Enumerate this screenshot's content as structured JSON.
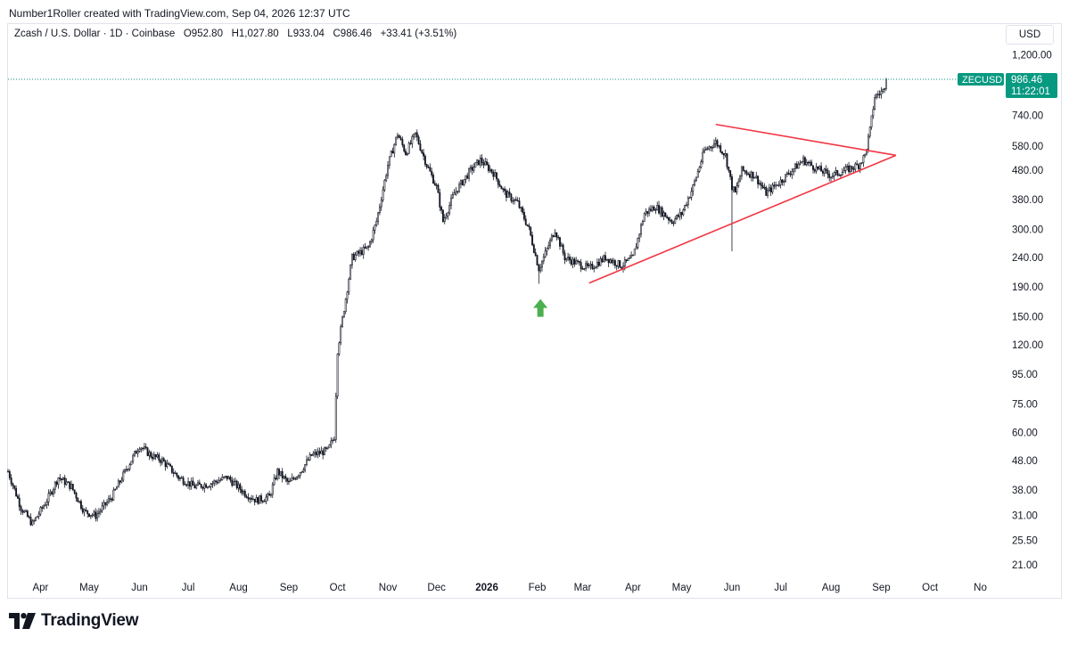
{
  "attribution": "Number1Roller created with TradingView.com, Sep 04, 2026 12:37 UTC",
  "legend": {
    "symbol": "Zcash / U.S. Dollar · 1D · Coinbase",
    "open_label": "O",
    "open": "952.80",
    "high_label": "H",
    "high": "1,027.80",
    "low_label": "L",
    "low": "933.04",
    "close_label": "C",
    "close": "986.46",
    "change": "+33.41 (+3.51%)"
  },
  "currency": "USD",
  "price_tag": {
    "symbol": "ZECUSD",
    "price": "986.46",
    "countdown": "11:22:01",
    "color": "#089981"
  },
  "brand": "TradingView",
  "chart_data": {
    "type": "candlestick",
    "scale": "log",
    "ylim": [
      19,
      1300
    ],
    "y_ticks": [
      {
        "v": 1200,
        "label": "1,200.00"
      },
      {
        "v": 740,
        "label": "740.00"
      },
      {
        "v": 580,
        "label": "580.00"
      },
      {
        "v": 480,
        "label": "480.00"
      },
      {
        "v": 380,
        "label": "380.00"
      },
      {
        "v": 300,
        "label": "300.00"
      },
      {
        "v": 240,
        "label": "240.00"
      },
      {
        "v": 190,
        "label": "190.00"
      },
      {
        "v": 150,
        "label": "150.00"
      },
      {
        "v": 120,
        "label": "120.00"
      },
      {
        "v": 95,
        "label": "95.00"
      },
      {
        "v": 75,
        "label": "75.00"
      },
      {
        "v": 60,
        "label": "60.00"
      },
      {
        "v": 48,
        "label": "48.00"
      },
      {
        "v": 38,
        "label": "38.00"
      },
      {
        "v": 31,
        "label": "31.00"
      },
      {
        "v": 25.5,
        "label": "25.50"
      },
      {
        "v": 21,
        "label": "21.00"
      }
    ],
    "x_start": "2025-03-12",
    "x_end": "2026-11-15",
    "x_ticks": [
      {
        "date": "2025-04-01",
        "label": "Apr"
      },
      {
        "date": "2025-05-01",
        "label": "May"
      },
      {
        "date": "2025-06-01",
        "label": "Jun"
      },
      {
        "date": "2025-07-01",
        "label": "Jul"
      },
      {
        "date": "2025-08-01",
        "label": "Aug"
      },
      {
        "date": "2025-09-01",
        "label": "Sep"
      },
      {
        "date": "2025-10-01",
        "label": "Oct"
      },
      {
        "date": "2025-11-01",
        "label": "Nov"
      },
      {
        "date": "2025-12-01",
        "label": "Dec"
      },
      {
        "date": "2026-01-01",
        "label": "2026",
        "bold": true
      },
      {
        "date": "2026-02-01",
        "label": "Feb"
      },
      {
        "date": "2026-03-01",
        "label": "Mar"
      },
      {
        "date": "2026-04-01",
        "label": "Apr"
      },
      {
        "date": "2026-05-01",
        "label": "May"
      },
      {
        "date": "2026-06-01",
        "label": "Jun"
      },
      {
        "date": "2026-07-01",
        "label": "Jul"
      },
      {
        "date": "2026-08-01",
        "label": "Aug"
      },
      {
        "date": "2026-09-01",
        "label": "Sep"
      },
      {
        "date": "2026-10-01",
        "label": "Oct"
      },
      {
        "date": "2026-11-01",
        "label": "No"
      }
    ],
    "price_path": [
      {
        "date": "2025-03-12",
        "close": 44
      },
      {
        "date": "2025-03-20",
        "close": 33
      },
      {
        "date": "2025-03-27",
        "close": 29
      },
      {
        "date": "2025-04-05",
        "close": 35
      },
      {
        "date": "2025-04-12",
        "close": 42
      },
      {
        "date": "2025-04-20",
        "close": 39
      },
      {
        "date": "2025-04-28",
        "close": 32
      },
      {
        "date": "2025-05-05",
        "close": 31
      },
      {
        "date": "2025-05-15",
        "close": 36
      },
      {
        "date": "2025-05-25",
        "close": 46
      },
      {
        "date": "2025-06-01",
        "close": 54
      },
      {
        "date": "2025-06-08",
        "close": 50
      },
      {
        "date": "2025-06-15",
        "close": 48
      },
      {
        "date": "2025-06-25",
        "close": 42
      },
      {
        "date": "2025-07-05",
        "close": 39
      },
      {
        "date": "2025-07-15",
        "close": 40
      },
      {
        "date": "2025-07-25",
        "close": 42
      },
      {
        "date": "2025-08-05",
        "close": 37
      },
      {
        "date": "2025-08-12",
        "close": 35
      },
      {
        "date": "2025-08-20",
        "close": 36
      },
      {
        "date": "2025-08-25",
        "close": 44
      },
      {
        "date": "2025-09-01",
        "close": 40
      },
      {
        "date": "2025-09-08",
        "close": 44
      },
      {
        "date": "2025-09-15",
        "close": 50
      },
      {
        "date": "2025-09-25",
        "close": 52
      },
      {
        "date": "2025-09-29",
        "close": 58
      },
      {
        "date": "2025-10-01",
        "close": 115
      },
      {
        "date": "2025-10-05",
        "close": 160
      },
      {
        "date": "2025-10-10",
        "close": 240
      },
      {
        "date": "2025-10-15",
        "close": 250
      },
      {
        "date": "2025-10-20",
        "close": 260
      },
      {
        "date": "2025-10-25",
        "close": 320
      },
      {
        "date": "2025-11-01",
        "close": 500
      },
      {
        "date": "2025-11-07",
        "close": 640
      },
      {
        "date": "2025-11-12",
        "close": 550
      },
      {
        "date": "2025-11-18",
        "close": 640
      },
      {
        "date": "2025-11-25",
        "close": 500
      },
      {
        "date": "2025-12-01",
        "close": 420
      },
      {
        "date": "2025-12-05",
        "close": 320
      },
      {
        "date": "2025-12-12",
        "close": 400
      },
      {
        "date": "2025-12-22",
        "close": 480
      },
      {
        "date": "2025-12-28",
        "close": 520
      },
      {
        "date": "2026-01-05",
        "close": 470
      },
      {
        "date": "2026-01-12",
        "close": 400
      },
      {
        "date": "2026-01-20",
        "close": 370
      },
      {
        "date": "2026-01-27",
        "close": 300
      },
      {
        "date": "2026-02-02",
        "close": 220
      },
      {
        "date": "2026-02-05",
        "close": 240
      },
      {
        "date": "2026-02-12",
        "close": 300
      },
      {
        "date": "2026-02-18",
        "close": 240
      },
      {
        "date": "2026-02-25",
        "close": 230
      },
      {
        "date": "2026-03-05",
        "close": 220
      },
      {
        "date": "2026-03-15",
        "close": 240
      },
      {
        "date": "2026-03-25",
        "close": 225
      },
      {
        "date": "2026-04-01",
        "close": 240
      },
      {
        "date": "2026-04-08",
        "close": 340
      },
      {
        "date": "2026-04-15",
        "close": 360
      },
      {
        "date": "2026-04-25",
        "close": 320
      },
      {
        "date": "2026-05-01",
        "close": 340
      },
      {
        "date": "2026-05-08",
        "close": 420
      },
      {
        "date": "2026-05-15",
        "close": 560
      },
      {
        "date": "2026-05-22",
        "close": 600
      },
      {
        "date": "2026-05-28",
        "close": 540
      },
      {
        "date": "2026-06-01",
        "close": 420
      },
      {
        "date": "2026-06-03",
        "close": 400
      },
      {
        "date": "2026-06-07",
        "close": 480
      },
      {
        "date": "2026-06-15",
        "close": 460
      },
      {
        "date": "2026-06-22",
        "close": 400
      },
      {
        "date": "2026-07-01",
        "close": 440
      },
      {
        "date": "2026-07-08",
        "close": 480
      },
      {
        "date": "2026-07-15",
        "close": 520
      },
      {
        "date": "2026-07-22",
        "close": 490
      },
      {
        "date": "2026-08-01",
        "close": 460
      },
      {
        "date": "2026-08-10",
        "close": 480
      },
      {
        "date": "2026-08-18",
        "close": 500
      },
      {
        "date": "2026-08-22",
        "close": 540
      },
      {
        "date": "2026-08-25",
        "close": 660
      },
      {
        "date": "2026-08-28",
        "close": 860
      },
      {
        "date": "2026-09-02",
        "close": 900
      },
      {
        "date": "2026-09-04",
        "close": 986.46
      }
    ],
    "wick_spikes": [
      {
        "date": "2026-06-01",
        "low": 252
      },
      {
        "date": "2026-02-02",
        "low": 195
      }
    ],
    "triangle": {
      "color": "#f23645",
      "upper": [
        {
          "date": "2026-05-22",
          "price": 690
        },
        {
          "date": "2026-09-10",
          "price": 540
        }
      ],
      "lower": [
        {
          "date": "2026-03-05",
          "price": 196
        },
        {
          "date": "2026-09-10",
          "price": 540
        }
      ]
    },
    "marker": {
      "type": "arrow-up",
      "date": "2026-02-03",
      "price": 150,
      "color": "#4caf50"
    },
    "last_price": 986.46,
    "grid": false,
    "legend_position": "top-left"
  }
}
